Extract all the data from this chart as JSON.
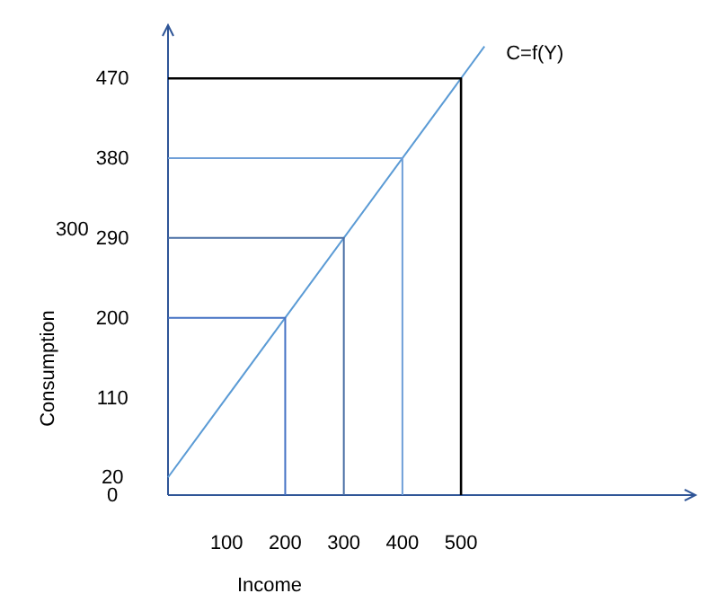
{
  "chart_data": {
    "type": "line",
    "xlabel": "Income",
    "ylabel": "Consumption",
    "xlim": [
      0,
      900
    ],
    "ylim": [
      0,
      530
    ],
    "xticks": [
      100,
      200,
      300,
      400,
      500
    ],
    "yticks": [
      0,
      20,
      110,
      200,
      290,
      380,
      470
    ],
    "annotations": [
      "300"
    ],
    "grid": false,
    "legend": false,
    "marker": "none",
    "line_style": "solid",
    "series": [
      {
        "name": "C=f(Y)",
        "color": "#5b9bd5",
        "x": [
          0,
          540
        ],
        "values": [
          20,
          506
        ]
      },
      {
        "color": "#4472c4",
        "x": [
          0,
          200,
          200
        ],
        "values": [
          200,
          200,
          0
        ]
      },
      {
        "color": "#4a6fa5",
        "x": [
          0,
          300,
          300
        ],
        "values": [
          290,
          290,
          0
        ]
      },
      {
        "color": "#6f9fd8",
        "x": [
          0,
          400,
          400
        ],
        "values": [
          380,
          380,
          0
        ]
      },
      {
        "color": "#000000",
        "x": [
          0,
          500,
          500
        ],
        "values": [
          470,
          470,
          0
        ]
      }
    ]
  }
}
